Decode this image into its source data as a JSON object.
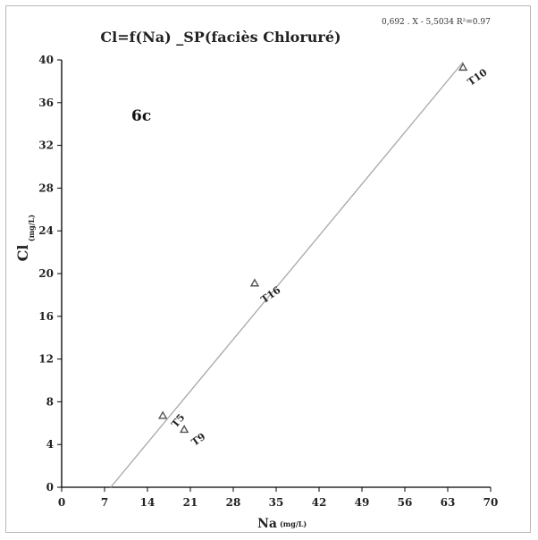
{
  "chart_data": {
    "type": "scatter",
    "title": "Cl=f(Na)  _SP(faciès Chloruré)",
    "equation": "0,692 . X  - 5,5034   R²=0.97",
    "panel_label": "6c",
    "xlabel": "Na",
    "xunit": "(mg/L)",
    "ylabel": "Cl",
    "yunit": "(mg/L)",
    "xlim": [
      0,
      70
    ],
    "ylim": [
      0,
      40
    ],
    "xticks": [
      "0",
      "7",
      "14",
      "21",
      "28",
      "35",
      "42",
      "49",
      "56",
      "63",
      "70"
    ],
    "yticks": [
      "0",
      "4",
      "8",
      "12",
      "16",
      "20",
      "24",
      "28",
      "32",
      "36",
      "40"
    ],
    "points": [
      {
        "label": "T10",
        "x": 65.5,
        "y": 39.3
      },
      {
        "label": "T16",
        "x": 31.5,
        "y": 19.1
      },
      {
        "label": "T5",
        "x": 16.5,
        "y": 6.7
      },
      {
        "label": "T9",
        "x": 20.0,
        "y": 5.4
      }
    ],
    "trendline": {
      "x1": 8.0,
      "y1": 0,
      "x2": 65.5,
      "y2": 39.8
    },
    "grid": false,
    "colors": {
      "axis": "#000000",
      "line": "#a8a8a8",
      "marker": "#555555",
      "text": "#222222"
    }
  }
}
